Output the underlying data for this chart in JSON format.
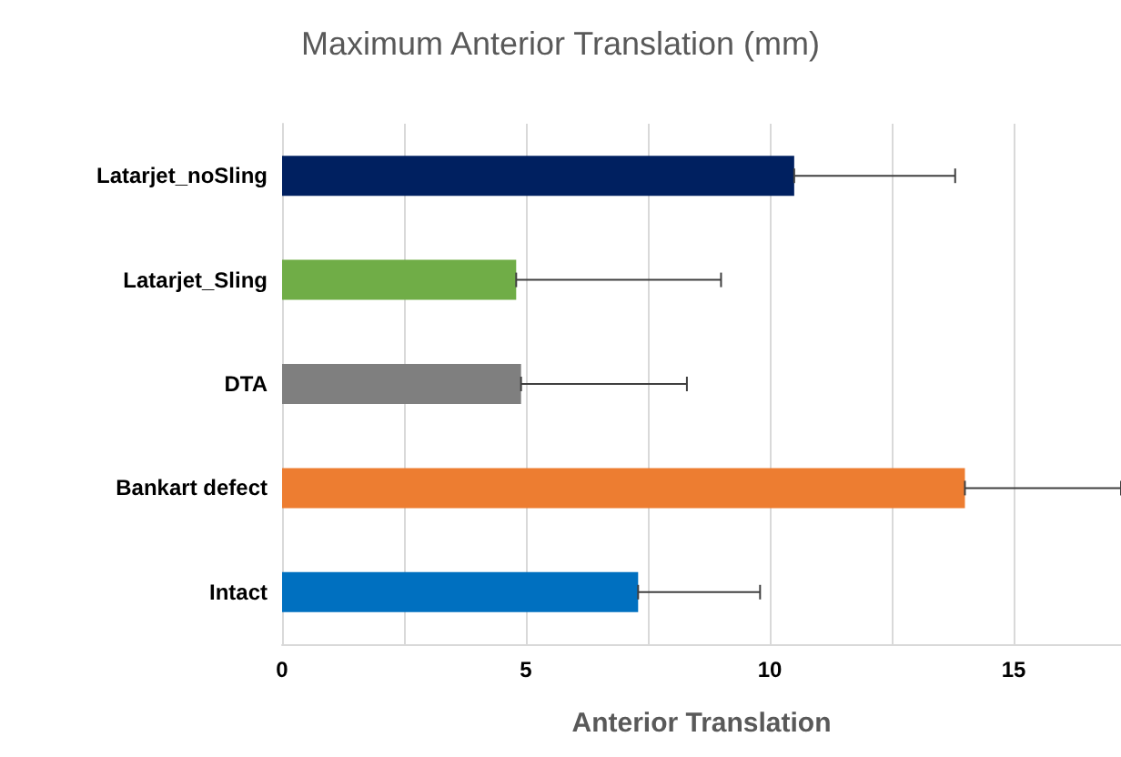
{
  "chart_data": {
    "type": "bar",
    "orientation": "horizontal",
    "title": "Maximum Anterior Translation (mm)",
    "xlabel": "Anterior Translation",
    "categories": [
      "Latarjet_noSling",
      "Latarjet_Sling",
      "DTA",
      "Bankart defect",
      "Intact"
    ],
    "values": [
      10.5,
      4.8,
      4.9,
      14.0,
      7.3
    ],
    "colors": [
      "#002060",
      "#70ad47",
      "#7f7f7f",
      "#ed7d31",
      "#0070c0"
    ],
    "errors": [
      [
        10.5,
        13.8
      ],
      [
        4.8,
        9.0
      ],
      [
        4.9,
        8.3
      ],
      [
        14.0,
        17.2
      ],
      [
        7.3,
        9.8
      ]
    ],
    "xlim": [
      0,
      17.2
    ],
    "xticks": [
      0,
      {
        "value": 2.5,
        "label": null
      },
      5,
      {
        "value": 7.5,
        "label": null
      },
      10,
      {
        "value": 12.5,
        "label": null
      },
      15
    ],
    "grid": "x"
  }
}
